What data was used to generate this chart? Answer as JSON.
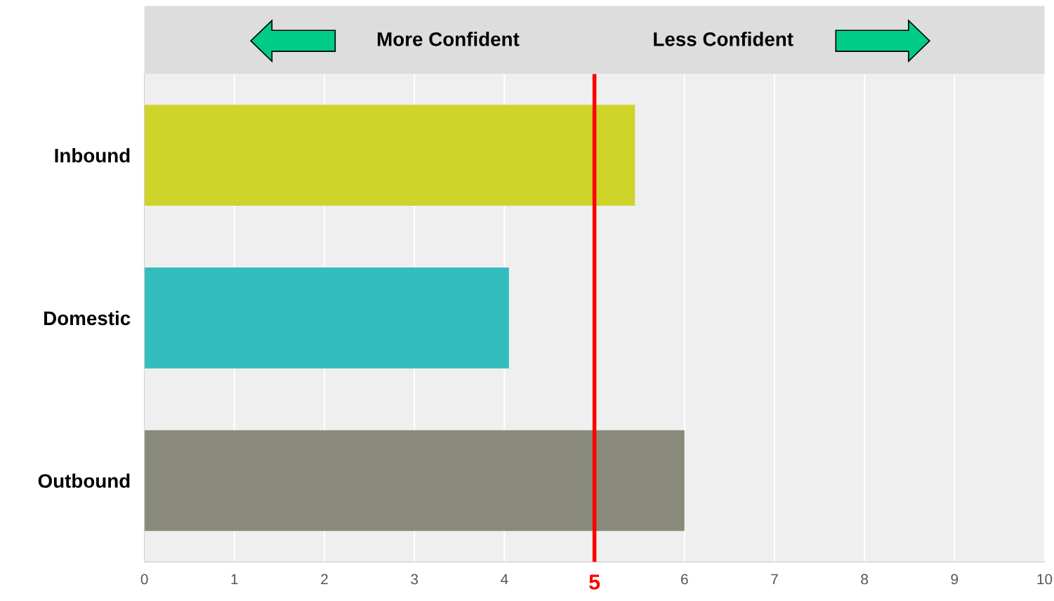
{
  "chart_data": {
    "type": "bar",
    "orientation": "horizontal",
    "categories": [
      "Inbound",
      "Domestic",
      "Outbound"
    ],
    "values": [
      5.45,
      4.05,
      6.0
    ],
    "colors": [
      "#cfd42a",
      "#33bdbf",
      "#8a8a7a"
    ],
    "xlim": [
      0,
      10
    ],
    "xticks": [
      0,
      1,
      2,
      3,
      4,
      {
        "value": 5,
        "label": null
      },
      6,
      7,
      8,
      9,
      10
    ],
    "grid": "x",
    "ref_lines": [
      {
        "axis": "x",
        "value": 5,
        "label": "5",
        "color": "#ff0000"
      }
    ],
    "annotations": [
      "More Confident",
      "Less Confident"
    ]
  }
}
